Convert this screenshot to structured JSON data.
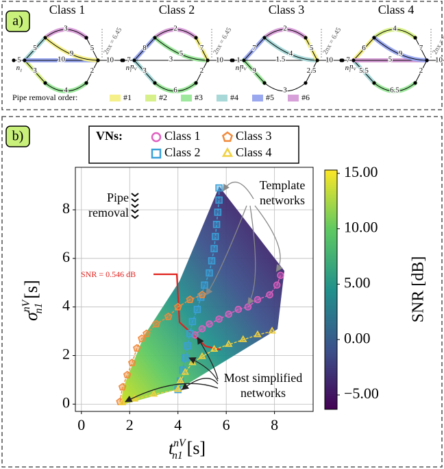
{
  "panel_a": {
    "label": "a)",
    "source_label": {
      "base": "n",
      "sub": "1"
    },
    "sink_label": {
      "base": "n",
      "sub": "V"
    },
    "classes": [
      {
        "title": "Class 1",
        "dx_label": "2nx = 6.45",
        "edge_labels": [
          "5",
          "5",
          "3",
          "3",
          "4",
          "10",
          "9",
          "5",
          "2",
          "10"
        ],
        "edge_colors": [
          "#000",
          "#a8d8d8",
          "#d8f08a",
          "#d8a0d8",
          "#9de89d",
          "#9aa8f0",
          "#f5f08a",
          "#000",
          "#000",
          "#000"
        ]
      },
      {
        "title": "Class 2",
        "dx_label": "2nx = 6.45",
        "edge_labels": [
          "7",
          "8",
          "3",
          "2",
          "6",
          "3",
          "5",
          "7",
          "2",
          "10"
        ],
        "edge_colors": [
          "#000",
          "#9aa8f0",
          "#a8d8d8",
          "#d8a0d8",
          "#9de89d",
          "#000",
          "#9de89d",
          "#f5f08a",
          "#000",
          "#000"
        ]
      },
      {
        "title": "Class 3",
        "dx_label": "2nx = 6.45",
        "edge_labels": [
          "1",
          "7",
          "9",
          "2",
          "3",
          "1.5",
          "4",
          "5",
          "2.5",
          "10"
        ],
        "edge_colors": [
          "#000",
          "#9aa8f0",
          "#9de89d",
          "#d8a0d8",
          "#000",
          "#000",
          "#a8d8d8",
          "#f5f08a",
          "#000",
          "#000"
        ]
      },
      {
        "title": "Class 4",
        "dx_label": "2nx = 6.45",
        "edge_labels": [
          "7",
          "6",
          "5.5",
          "4",
          "6.5",
          "5",
          "9",
          "7",
          "2",
          "10"
        ],
        "edge_colors": [
          "#000",
          "#f5f08a",
          "#a8d8d8",
          "#d8f08a",
          "#9de89d",
          "#d8a0d8",
          "#9aa8f0",
          "#000",
          "#000",
          "#000"
        ]
      }
    ],
    "removal_legend": {
      "label": "Pipe removal order:",
      "items": [
        {
          "name": "#1",
          "color": "#f5f08a"
        },
        {
          "name": "#2",
          "color": "#d8f08a"
        },
        {
          "name": "#3",
          "color": "#9de89d"
        },
        {
          "name": "#4",
          "color": "#a8d8d8"
        },
        {
          "name": "#5",
          "color": "#9aa8f0"
        },
        {
          "name": "#6",
          "color": "#d8a0d8"
        }
      ]
    }
  },
  "panel_b": {
    "label": "b)"
  },
  "chart_data": {
    "type": "scatter",
    "legend_title": "VNs:",
    "xlabel": {
      "base": "t",
      "sup": "nV",
      "sub": "n1",
      "unit": "[s]"
    },
    "ylabel": {
      "base": "σ",
      "sup": "nV",
      "sub": "n1",
      "unit": "[s]"
    },
    "xlim": [
      -0.25,
      9.6
    ],
    "ylim": [
      -0.3,
      9.75
    ],
    "xticks": [
      0,
      2,
      4,
      6,
      8
    ],
    "yticks": [
      0,
      2,
      4,
      6,
      8
    ],
    "grid": true,
    "series": [
      {
        "name": "Class 1",
        "marker": "circle",
        "color": "#e060c0",
        "x": [
          8.25,
          8.1,
          7.8,
          7.3,
          6.9,
          6.5,
          6.1,
          5.7,
          5.3,
          5.0,
          4.7
        ],
        "values": [
          5.3,
          4.9,
          4.5,
          4.3,
          4.0,
          3.9,
          3.7,
          3.5,
          3.3,
          3.1,
          2.85
        ]
      },
      {
        "name": "Class 2",
        "marker": "square",
        "color": "#3aa0d8",
        "x": [
          5.7,
          5.7,
          5.65,
          5.6,
          5.55,
          5.5,
          5.4,
          5.3,
          5.1,
          4.95,
          4.8,
          4.6,
          4.5,
          4.4,
          4.3,
          4.2,
          4.1,
          4.0
        ],
        "values": [
          8.9,
          8.4,
          7.9,
          7.4,
          6.9,
          6.4,
          5.9,
          5.4,
          4.9,
          4.4,
          3.9,
          3.4,
          2.9,
          2.4,
          1.9,
          1.4,
          0.95,
          0.6
        ]
      },
      {
        "name": "Class 3",
        "marker": "pentagon",
        "color": "#f08a3c",
        "x": [
          5.0,
          4.5,
          4.0,
          3.6,
          3.1,
          2.7,
          2.5,
          2.3,
          2.1,
          1.9,
          1.7,
          1.6
        ],
        "values": [
          4.5,
          4.3,
          4.0,
          3.6,
          3.3,
          2.9,
          2.7,
          2.3,
          1.7,
          1.2,
          0.7,
          0.1
        ]
      },
      {
        "name": "Class 4",
        "marker": "triangle",
        "color": "#f0d040",
        "x": [
          7.9,
          7.3,
          6.7,
          6.1,
          5.5,
          5.0,
          4.6,
          4.3,
          4.1,
          4.0,
          3.0,
          2.2,
          1.7
        ],
        "values": [
          3.0,
          2.85,
          2.65,
          2.45,
          2.25,
          1.95,
          1.7,
          1.3,
          0.95,
          0.6,
          0.4,
          0.2,
          0.05
        ]
      }
    ],
    "colorbar": {
      "label": "SNR [dB]",
      "lim": [
        -6.3,
        15.3
      ],
      "ticks": [
        {
          "value": -5,
          "label": "−5.00"
        },
        {
          "value": 0,
          "label": "0.00"
        },
        {
          "value": 5,
          "label": "5.00"
        },
        {
          "value": 10,
          "label": "10.00"
        },
        {
          "value": 15,
          "label": "15.00"
        }
      ]
    },
    "annotations": {
      "contour": "SNR = 0.546 dB",
      "pipe_removal": [
        "Pipe",
        "removal"
      ],
      "template": [
        "Template",
        "networks"
      ],
      "simplified": [
        "Most simplified",
        "networks"
      ]
    }
  }
}
